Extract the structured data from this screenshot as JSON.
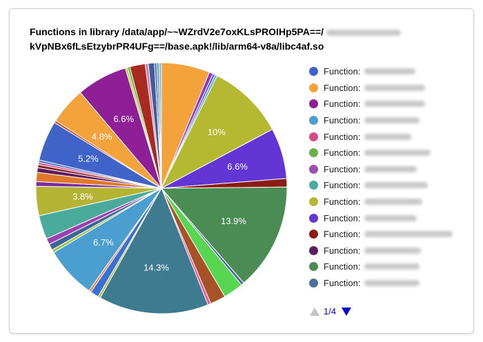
{
  "chart_data": {
    "type": "pie",
    "title_line1": "Functions in library /data/app/~~WZrdV2e7oxKLsPROIHp5PA==/",
    "title_line2": "kVpNBx6fLsEtzybrPR4UFg==/base.apk!/lib/arm64-v8a/libc4af.so",
    "slices": [
      {
        "value": 6.3,
        "color": "#f4a23c"
      },
      {
        "value": 0.5,
        "color": "#9b2fbf"
      },
      {
        "value": 0.3,
        "color": "#4a5fd9"
      },
      {
        "value": 0.3,
        "color": "#5ab0d9"
      },
      {
        "value": 10.0,
        "color": "#b5b932",
        "label": "10%"
      },
      {
        "value": 6.6,
        "color": "#6235d4",
        "label": "6.6%"
      },
      {
        "value": 1.1,
        "color": "#8b1b13"
      },
      {
        "value": 13.9,
        "color": "#4b8c55",
        "label": "13.9%"
      },
      {
        "value": 0.4,
        "color": "#4e6fa0"
      },
      {
        "value": 2.6,
        "color": "#59d651"
      },
      {
        "value": 2.0,
        "color": "#a65327"
      },
      {
        "value": 0.4,
        "color": "#e85a9a"
      },
      {
        "value": 14.3,
        "color": "#3e7a90",
        "label": "14.3%"
      },
      {
        "value": 0.3,
        "color": "#b8b82e"
      },
      {
        "value": 1.1,
        "color": "#3a6fd4"
      },
      {
        "value": 0.3,
        "color": "#f27a39"
      },
      {
        "value": 6.7,
        "color": "#4a9ed0",
        "label": "6.7%"
      },
      {
        "value": 0.4,
        "color": "#9cc04a"
      },
      {
        "value": 0.8,
        "color": "#3f6598"
      },
      {
        "value": 0.8,
        "color": "#9c3fb1"
      },
      {
        "value": 3.1,
        "color": "#4aaa9c"
      },
      {
        "value": 3.8,
        "color": "#b4b334",
        "label": "3.8%"
      },
      {
        "value": 0.6,
        "color": "#7a2aa0"
      },
      {
        "value": 1.2,
        "color": "#e07a2a"
      },
      {
        "value": 0.6,
        "color": "#5e1d5e"
      },
      {
        "value": 0.4,
        "color": "#8b2323"
      },
      {
        "value": 0.3,
        "color": "#d44b87"
      },
      {
        "value": 0.3,
        "color": "#4a6ad4"
      },
      {
        "value": 5.2,
        "color": "#3f63c8",
        "label": "5.2%"
      },
      {
        "value": 0.3,
        "color": "#c94a2a"
      },
      {
        "value": 4.8,
        "color": "#f4a23c",
        "label": "4.8%"
      },
      {
        "value": 6.6,
        "color": "#8f1f96",
        "label": "6.6%"
      },
      {
        "value": 0.3,
        "color": "#c8c83a"
      },
      {
        "value": 0.3,
        "color": "#58b04a"
      },
      {
        "value": 2.0,
        "color": "#a82b22"
      },
      {
        "value": 0.4,
        "color": "#e07aa0"
      },
      {
        "value": 0.8,
        "color": "#3c5f9c"
      },
      {
        "value": 0.3,
        "color": "#6a5acd"
      },
      {
        "value": 0.3,
        "color": "#4aaa9c"
      },
      {
        "value": 0.3,
        "color": "#7fb6e0"
      }
    ]
  },
  "legend": {
    "items": [
      {
        "label": "Function:",
        "color": "#3f63c8"
      },
      {
        "label": "Function:",
        "color": "#f4a23c"
      },
      {
        "label": "Function:",
        "color": "#8f1f96"
      },
      {
        "label": "Function:",
        "color": "#4a9ed0"
      },
      {
        "label": "Function:",
        "color": "#d44b87"
      },
      {
        "label": "Function:",
        "color": "#6ab04a"
      },
      {
        "label": "Function:",
        "color": "#9c4fb1"
      },
      {
        "label": "Function:",
        "color": "#4aaa9c"
      },
      {
        "label": "Function:",
        "color": "#b5b932"
      },
      {
        "label": "Function:",
        "color": "#6235d4"
      },
      {
        "label": "Function:",
        "color": "#8b1b13"
      },
      {
        "label": "Function:",
        "color": "#5e1d5e"
      },
      {
        "label": "Function:",
        "color": "#4b8c55"
      },
      {
        "label": "Function:",
        "color": "#4e6fa0"
      }
    ],
    "page_text": "1/4"
  }
}
